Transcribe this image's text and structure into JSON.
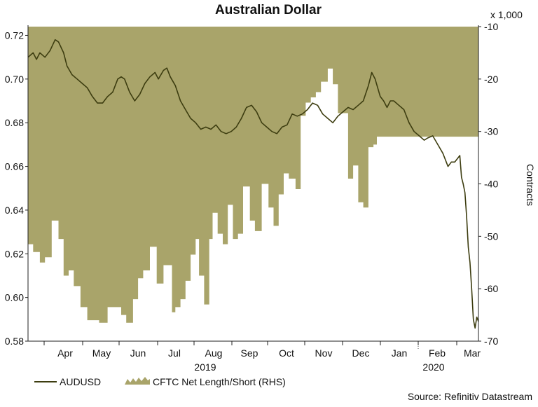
{
  "chart_data": {
    "type": "line+area",
    "title": "Australian Dollar",
    "y_left": {
      "ticks": [
        "0.72",
        "0.70",
        "0.68",
        "0.66",
        "0.64",
        "0.62",
        "0.60",
        "0.58"
      ],
      "min": 0.58,
      "max": 0.724
    },
    "y_right": {
      "ticks": [
        "-10",
        "-20",
        "-30",
        "-40",
        "-50",
        "-60",
        "-70"
      ],
      "min": -70,
      "max": -10,
      "unit_label": "x 1,000",
      "label": "Contracts"
    },
    "x_months": [
      "Apr",
      "May",
      "Jun",
      "Jul",
      "Aug",
      "Sep",
      "Oct",
      "Nov",
      "Dec",
      "Jan",
      "Feb",
      "Mar"
    ],
    "x_years": [
      "2019",
      "2020"
    ],
    "series": [
      {
        "name": "AUDUSD",
        "color": "#3d3d10",
        "values": [
          [
            0,
            0.71
          ],
          [
            1.5,
            0.712
          ],
          [
            2.5,
            0.709
          ],
          [
            3.5,
            0.712
          ],
          [
            5,
            0.71
          ],
          [
            6.5,
            0.713
          ],
          [
            8,
            0.718
          ],
          [
            9,
            0.717
          ],
          [
            10.5,
            0.712
          ],
          [
            11.5,
            0.706
          ],
          [
            13,
            0.702
          ],
          [
            14.5,
            0.7
          ],
          [
            16,
            0.698
          ],
          [
            17.5,
            0.696
          ],
          [
            19,
            0.692
          ],
          [
            20.5,
            0.689
          ],
          [
            22,
            0.689
          ],
          [
            23.5,
            0.692
          ],
          [
            25,
            0.694
          ],
          [
            26.5,
            0.7
          ],
          [
            27.5,
            0.701
          ],
          [
            28.5,
            0.7
          ],
          [
            30,
            0.694
          ],
          [
            31.5,
            0.69
          ],
          [
            33,
            0.693
          ],
          [
            34.5,
            0.698
          ],
          [
            36,
            0.701
          ],
          [
            37.5,
            0.703
          ],
          [
            38.5,
            0.7
          ],
          [
            40,
            0.704
          ],
          [
            41,
            0.705
          ],
          [
            42,
            0.701
          ],
          [
            43.5,
            0.697
          ],
          [
            45,
            0.69
          ],
          [
            46.5,
            0.686
          ],
          [
            48,
            0.682
          ],
          [
            49.5,
            0.68
          ],
          [
            51,
            0.677
          ],
          [
            52.5,
            0.678
          ],
          [
            54,
            0.677
          ],
          [
            55.5,
            0.679
          ],
          [
            57,
            0.676
          ],
          [
            58.5,
            0.675
          ],
          [
            60,
            0.676
          ],
          [
            61.5,
            0.678
          ],
          [
            63,
            0.682
          ],
          [
            64.5,
            0.687
          ],
          [
            66,
            0.688
          ],
          [
            67.5,
            0.685
          ],
          [
            69,
            0.68
          ],
          [
            70.5,
            0.678
          ],
          [
            72,
            0.676
          ],
          [
            73.5,
            0.675
          ],
          [
            75,
            0.678
          ],
          [
            76.5,
            0.679
          ],
          [
            78,
            0.684
          ],
          [
            79.5,
            0.683
          ],
          [
            81,
            0.684
          ],
          [
            82.5,
            0.686
          ],
          [
            84,
            0.689
          ],
          [
            85.5,
            0.688
          ],
          [
            87,
            0.684
          ],
          [
            88.5,
            0.682
          ],
          [
            90,
            0.68
          ],
          [
            91.5,
            0.683
          ],
          [
            93,
            0.685
          ],
          [
            94.5,
            0.687
          ],
          [
            96,
            0.686
          ],
          [
            97.5,
            0.688
          ],
          [
            99,
            0.69
          ],
          [
            100.5,
            0.697
          ],
          [
            101.5,
            0.703
          ],
          [
            102.5,
            0.7
          ],
          [
            104,
            0.692
          ],
          [
            105,
            0.69
          ],
          [
            106,
            0.687
          ],
          [
            107,
            0.69
          ],
          [
            108,
            0.69
          ],
          [
            109.5,
            0.688
          ],
          [
            111,
            0.686
          ],
          [
            112.5,
            0.68
          ],
          [
            114,
            0.676
          ],
          [
            115.5,
            0.674
          ],
          [
            117,
            0.672
          ],
          [
            118,
            0.673
          ],
          [
            119.5,
            0.674
          ],
          [
            121,
            0.67
          ],
          [
            122.5,
            0.666
          ],
          [
            124,
            0.66
          ],
          [
            125,
            0.662
          ],
          [
            126,
            0.662
          ],
          [
            127,
            0.664
          ],
          [
            127.5,
            0.665
          ],
          [
            128,
            0.655
          ],
          [
            128.5,
            0.652
          ],
          [
            129,
            0.648
          ],
          [
            129.5,
            0.637
          ],
          [
            130,
            0.623
          ],
          [
            130.5,
            0.616
          ],
          [
            131,
            0.604
          ],
          [
            131.5,
            0.59
          ],
          [
            132,
            0.586
          ],
          [
            132.5,
            0.591
          ],
          [
            133,
            0.589
          ]
        ]
      },
      {
        "name": "CFTC Net Length/Short (RHS)",
        "color": "#a9a46a",
        "values": [
          [
            0,
            -51.5
          ],
          [
            1.5,
            -53.0
          ],
          [
            3.5,
            -55.0
          ],
          [
            5,
            -54.0
          ],
          [
            7,
            -47.0
          ],
          [
            9,
            -50.5
          ],
          [
            10.5,
            -57.5
          ],
          [
            12,
            -56.5
          ],
          [
            13.5,
            -59.5
          ],
          [
            15.5,
            -63.5
          ],
          [
            17.5,
            -66.0
          ],
          [
            19.5,
            -66.0
          ],
          [
            21,
            -66.5
          ],
          [
            23.5,
            -63.5
          ],
          [
            25.5,
            -63.5
          ],
          [
            27.5,
            -65.0
          ],
          [
            29,
            -66.5
          ],
          [
            31,
            -62.0
          ],
          [
            32.5,
            -58.0
          ],
          [
            34,
            -56.5
          ],
          [
            36,
            -52.0
          ],
          [
            38,
            -59.0
          ],
          [
            40,
            -55.5
          ],
          [
            42.5,
            -64.5
          ],
          [
            43.5,
            -63.5
          ],
          [
            45,
            -62.0
          ],
          [
            46.5,
            -58.5
          ],
          [
            48,
            -53.5
          ],
          [
            49.5,
            -50.5
          ],
          [
            50.5,
            -57.5
          ],
          [
            52,
            -63.0
          ],
          [
            53.5,
            -50.5
          ],
          [
            54.5,
            -45.5
          ],
          [
            56,
            -49.5
          ],
          [
            57.5,
            -51.5
          ],
          [
            59,
            -44.0
          ],
          [
            60.5,
            -50.5
          ],
          [
            62,
            -49.5
          ],
          [
            63.5,
            -40.5
          ],
          [
            65.5,
            -47.0
          ],
          [
            67,
            -49.0
          ],
          [
            69,
            -40.0
          ],
          [
            71,
            -44.5
          ],
          [
            72.5,
            -48.0
          ],
          [
            74,
            -42.0
          ],
          [
            75.5,
            -38.0
          ],
          [
            77,
            -39.0
          ],
          [
            79,
            -41.0
          ],
          [
            80.5,
            -27.0
          ],
          [
            82,
            -24.5
          ],
          [
            83.5,
            -23.5
          ],
          [
            85,
            -22.5
          ],
          [
            86.5,
            -20.5
          ],
          [
            88.5,
            -18.0
          ],
          [
            90,
            -21.0
          ],
          [
            91.5,
            -26.5
          ],
          [
            93,
            -26.5
          ],
          [
            94.5,
            -39.0
          ],
          [
            96,
            -36.5
          ],
          [
            97.5,
            -43.5
          ],
          [
            99,
            -44.5
          ],
          [
            100.5,
            -33.0
          ],
          [
            102,
            -32.5
          ],
          [
            103,
            -31.0
          ]
        ]
      }
    ],
    "legend": [
      "AUDUSD",
      "CFTC Net Length/Short (RHS)"
    ],
    "source": "Source: Refinitiv Datastream"
  }
}
